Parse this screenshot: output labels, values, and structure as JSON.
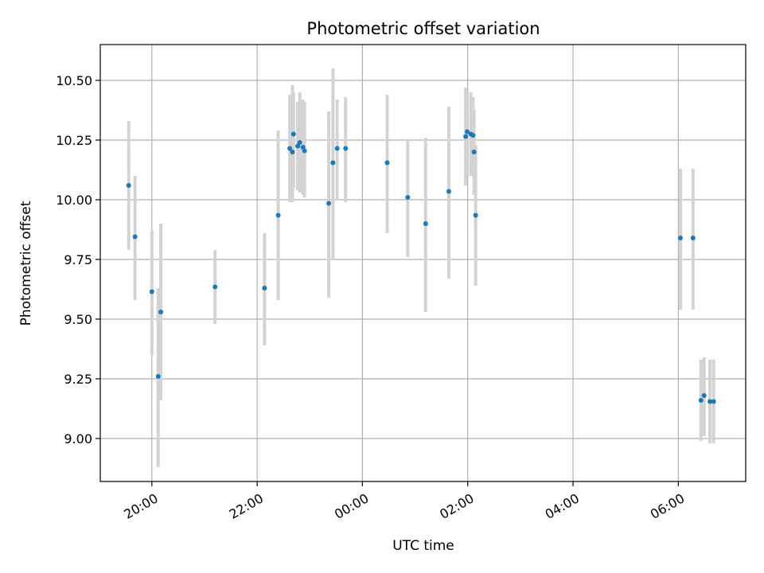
{
  "chart_data": {
    "type": "scatter",
    "title": "Photometric offset variation",
    "xlabel": "UTC time",
    "ylabel": "Photometric offset",
    "x_axis": "datetime (UTC), values in hours relative to 00:00",
    "xlim": [
      -4.98,
      7.28
    ],
    "ylim": [
      8.82,
      10.65
    ],
    "grid": true,
    "xticks": [
      {
        "value": -4,
        "label": "20:00"
      },
      {
        "value": -2,
        "label": "22:00"
      },
      {
        "value": 0,
        "label": "00:00"
      },
      {
        "value": 2,
        "label": "02:00"
      },
      {
        "value": 4,
        "label": "04:00"
      },
      {
        "value": 6,
        "label": "06:00"
      }
    ],
    "yticks": [
      {
        "value": 9.0,
        "label": "9.00"
      },
      {
        "value": 9.25,
        "label": "9.25"
      },
      {
        "value": 9.5,
        "label": "9.50"
      },
      {
        "value": 9.75,
        "label": "9.75"
      },
      {
        "value": 10.0,
        "label": "10.00"
      },
      {
        "value": 10.25,
        "label": "10.25"
      },
      {
        "value": 10.5,
        "label": "10.50"
      }
    ],
    "marker_color": "#1f77b4",
    "errorbar_color": "#d3d3d3",
    "series": [
      {
        "points": [
          {
            "x": -4.44,
            "y": 10.06,
            "lo": 9.79,
            "hi": 10.33
          },
          {
            "x": -4.32,
            "y": 9.845,
            "lo": 9.58,
            "hi": 10.1
          },
          {
            "x": -4.0,
            "y": 9.615,
            "lo": 9.35,
            "hi": 9.87
          },
          {
            "x": -3.88,
            "y": 9.26,
            "lo": 8.88,
            "hi": 9.63
          },
          {
            "x": -3.83,
            "y": 9.53,
            "lo": 9.16,
            "hi": 9.9
          },
          {
            "x": -2.8,
            "y": 9.635,
            "lo": 9.48,
            "hi": 9.79
          },
          {
            "x": -1.86,
            "y": 9.63,
            "lo": 9.39,
            "hi": 9.86
          },
          {
            "x": -1.6,
            "y": 9.935,
            "lo": 9.58,
            "hi": 10.29
          },
          {
            "x": -1.38,
            "y": 10.215,
            "lo": 9.99,
            "hi": 10.44
          },
          {
            "x": -1.33,
            "y": 10.2,
            "lo": 9.99,
            "hi": 10.48
          },
          {
            "x": -1.31,
            "y": 10.275,
            "lo": 10.05,
            "hi": 10.45
          },
          {
            "x": -1.23,
            "y": 10.225,
            "lo": 10.04,
            "hi": 10.41
          },
          {
            "x": -1.19,
            "y": 10.24,
            "lo": 10.03,
            "hi": 10.45
          },
          {
            "x": -1.13,
            "y": 10.22,
            "lo": 10.02,
            "hi": 10.42
          },
          {
            "x": -1.1,
            "y": 10.205,
            "lo": 10.01,
            "hi": 10.41
          },
          {
            "x": -0.64,
            "y": 9.985,
            "lo": 9.59,
            "hi": 10.37
          },
          {
            "x": -0.56,
            "y": 10.155,
            "lo": 9.75,
            "hi": 10.55
          },
          {
            "x": -0.48,
            "y": 10.215,
            "lo": 10.0,
            "hi": 10.42
          },
          {
            "x": -0.32,
            "y": 10.215,
            "lo": 9.99,
            "hi": 10.43
          },
          {
            "x": 0.47,
            "y": 10.155,
            "lo": 9.86,
            "hi": 10.44
          },
          {
            "x": 0.86,
            "y": 10.01,
            "lo": 9.76,
            "hi": 10.25
          },
          {
            "x": 1.2,
            "y": 9.9,
            "lo": 9.53,
            "hi": 10.26
          },
          {
            "x": 1.64,
            "y": 10.035,
            "lo": 9.67,
            "hi": 10.39
          },
          {
            "x": 1.96,
            "y": 10.265,
            "lo": 10.06,
            "hi": 10.47
          },
          {
            "x": 1.99,
            "y": 10.285,
            "lo": 10.1,
            "hi": 10.45
          },
          {
            "x": 2.06,
            "y": 10.275,
            "lo": 10.1,
            "hi": 10.45
          },
          {
            "x": 2.1,
            "y": 10.27,
            "lo": 10.12,
            "hi": 10.43
          },
          {
            "x": 2.12,
            "y": 10.2,
            "lo": 10.02,
            "hi": 10.38
          },
          {
            "x": 2.15,
            "y": 9.935,
            "lo": 9.64,
            "hi": 10.23
          },
          {
            "x": 6.04,
            "y": 9.84,
            "lo": 9.54,
            "hi": 10.13
          },
          {
            "x": 6.28,
            "y": 9.84,
            "lo": 9.54,
            "hi": 10.13
          },
          {
            "x": 6.43,
            "y": 9.16,
            "lo": 8.99,
            "hi": 9.33
          },
          {
            "x": 6.49,
            "y": 9.18,
            "lo": 9.01,
            "hi": 9.34
          },
          {
            "x": 6.6,
            "y": 9.155,
            "lo": 8.98,
            "hi": 9.33
          },
          {
            "x": 6.67,
            "y": 9.155,
            "lo": 8.98,
            "hi": 9.33
          }
        ]
      }
    ]
  }
}
